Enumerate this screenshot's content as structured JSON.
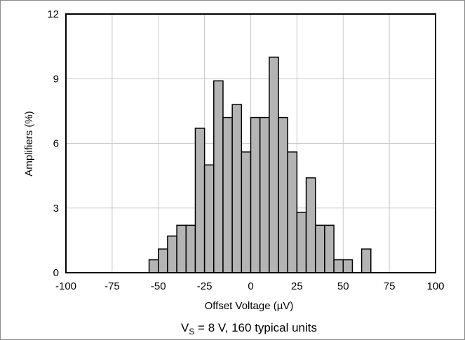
{
  "chart_data": {
    "type": "bar",
    "xlabel": "Offset Voltage (µV)",
    "ylabel": "Amplifiers (%)",
    "caption": {
      "v": "V",
      "sub": "S",
      "rest": " = 8 V, 160 typical units"
    },
    "xlim": [
      -100,
      100
    ],
    "ylim": [
      0,
      12
    ],
    "xticks": [
      -100,
      -75,
      -50,
      -25,
      0,
      25,
      50,
      75,
      100
    ],
    "yticks": [
      0,
      3,
      6,
      9,
      12
    ],
    "grid": true,
    "bin_width": 5,
    "bar_color": "#b4b4b4",
    "bins": [
      {
        "start": -55,
        "value": 0.6
      },
      {
        "start": -50,
        "value": 1.1
      },
      {
        "start": -45,
        "value": 1.7
      },
      {
        "start": -40,
        "value": 2.2
      },
      {
        "start": -35,
        "value": 2.2
      },
      {
        "start": -30,
        "value": 6.7
      },
      {
        "start": -25,
        "value": 5.0
      },
      {
        "start": -20,
        "value": 8.9
      },
      {
        "start": -15,
        "value": 7.2
      },
      {
        "start": -10,
        "value": 7.8
      },
      {
        "start": -5,
        "value": 5.6
      },
      {
        "start": 0,
        "value": 7.2
      },
      {
        "start": 5,
        "value": 7.2
      },
      {
        "start": 10,
        "value": 10.0
      },
      {
        "start": 15,
        "value": 7.2
      },
      {
        "start": 20,
        "value": 5.6
      },
      {
        "start": 25,
        "value": 2.8
      },
      {
        "start": 30,
        "value": 4.4
      },
      {
        "start": 35,
        "value": 2.2
      },
      {
        "start": 40,
        "value": 2.2
      },
      {
        "start": 45,
        "value": 0.6
      },
      {
        "start": 50,
        "value": 0.6
      },
      {
        "start": 60,
        "value": 1.1
      }
    ]
  }
}
